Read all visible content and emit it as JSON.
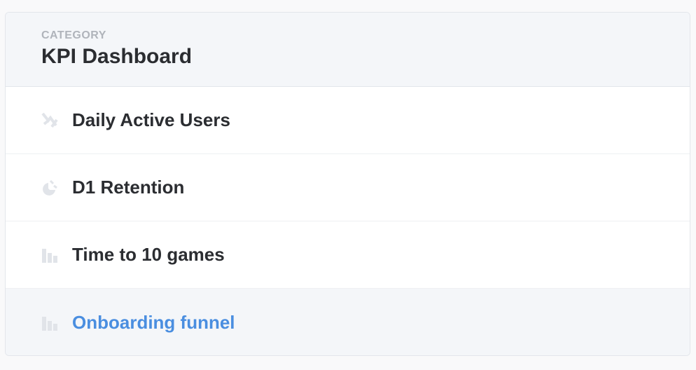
{
  "header": {
    "category": "CATEGORY",
    "title": "KPI Dashboard"
  },
  "items": [
    {
      "label": "Daily Active Users",
      "icon": "line-chart-icon"
    },
    {
      "label": "D1 Retention",
      "icon": "pie-chart-icon"
    },
    {
      "label": "Time to 10 games",
      "icon": "bar-chart-icon"
    },
    {
      "label": "Onboarding funnel",
      "icon": "bar-chart-icon",
      "active": true
    }
  ],
  "colors": {
    "accent": "#4a8ee0",
    "icon": "#e1e4e9"
  }
}
